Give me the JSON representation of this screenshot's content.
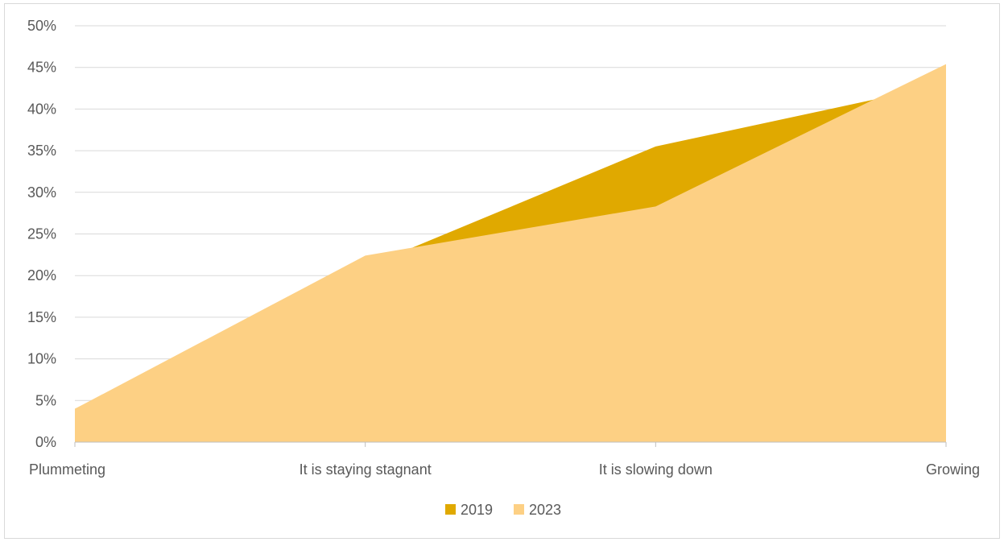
{
  "chart_data": {
    "type": "area",
    "title": "",
    "xlabel": "",
    "ylabel": "",
    "categories": [
      "Plummeting",
      "It is staying stagnant",
      "It is slowing down",
      "Growing"
    ],
    "y_ticks": [
      "0%",
      "5%",
      "10%",
      "15%",
      "20%",
      "25%",
      "30%",
      "35%",
      "40%",
      "45%",
      "50%"
    ],
    "ylim": [
      0,
      50
    ],
    "grid": true,
    "legend_position": "bottom",
    "series": [
      {
        "name": "2019",
        "values": [
          4.0,
          21.0,
          35.5,
          43.0
        ],
        "color": "#e0a900"
      },
      {
        "name": "2023",
        "values": [
          4.0,
          22.4,
          28.3,
          45.4
        ],
        "color": "#fdd084"
      }
    ],
    "colors": {
      "gridline": "#d9d9d9",
      "axis": "#bfbfbf",
      "text": "#595959"
    }
  }
}
